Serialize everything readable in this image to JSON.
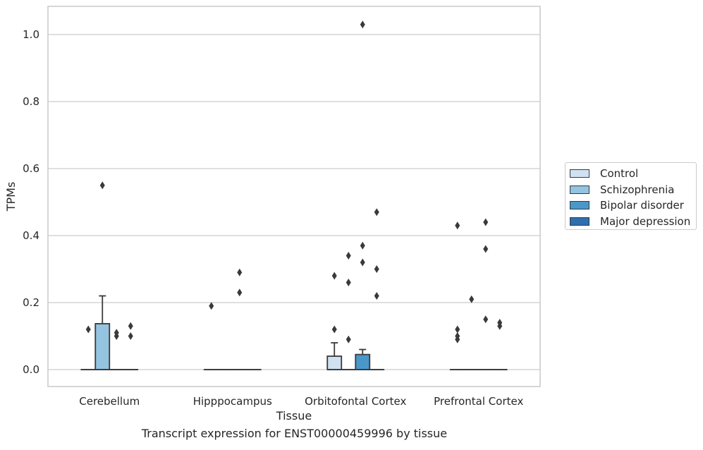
{
  "chart_data": {
    "type": "box",
    "title": "Transcript expression for ENST00000459996 by tissue",
    "xlabel": "Tissue",
    "ylabel": "TPMs",
    "ylim": [
      -0.05,
      1.08
    ],
    "yticks": [
      "0.0",
      "0.2",
      "0.4",
      "0.6",
      "0.8",
      "1.0"
    ],
    "categories": [
      "Cerebellum",
      "Hipppocampus",
      "Orbitofontal Cortex",
      "Prefrontal Cortex"
    ],
    "grid": "horizontal",
    "legend_position": "right",
    "series": [
      {
        "name": "Control",
        "color": "#d0e1f2",
        "boxes": [
          {
            "q1": 0,
            "median": 0,
            "q3": 0,
            "whisker_low": 0,
            "whisker_high": 0,
            "outliers": [
              0.12
            ]
          },
          {
            "q1": 0,
            "median": 0,
            "q3": 0,
            "whisker_low": 0,
            "whisker_high": 0,
            "outliers": [
              0.19
            ]
          },
          {
            "q1": 0,
            "median": 0,
            "q3": 0.04,
            "whisker_low": 0,
            "whisker_high": 0.08,
            "outliers": [
              0.12,
              0.28
            ]
          },
          {
            "q1": 0,
            "median": 0,
            "q3": 0,
            "whisker_low": 0,
            "whisker_high": 0,
            "outliers": [
              0.09,
              0.1,
              0.12,
              0.43
            ]
          }
        ]
      },
      {
        "name": "Schizophrenia",
        "color": "#94c4df",
        "boxes": [
          {
            "q1": 0,
            "median": 0,
            "q3": 0.137,
            "whisker_low": 0,
            "whisker_high": 0.22,
            "outliers": [
              0.55
            ]
          },
          {
            "q1": 0,
            "median": 0,
            "q3": 0,
            "whisker_low": 0,
            "whisker_high": 0,
            "outliers": []
          },
          {
            "q1": 0,
            "median": 0,
            "q3": 0,
            "whisker_low": 0,
            "whisker_high": 0,
            "outliers": [
              0.09,
              0.26,
              0.34
            ]
          },
          {
            "q1": 0,
            "median": 0,
            "q3": 0,
            "whisker_low": 0,
            "whisker_high": 0,
            "outliers": [
              0.21
            ]
          }
        ]
      },
      {
        "name": "Bipolar disorder",
        "color": "#4a98c9",
        "boxes": [
          {
            "q1": 0,
            "median": 0,
            "q3": 0,
            "whisker_low": 0,
            "whisker_high": 0,
            "outliers": [
              0.1,
              0.11
            ]
          },
          {
            "q1": 0,
            "median": 0,
            "q3": 0,
            "whisker_low": 0,
            "whisker_high": 0,
            "outliers": [
              0.23,
              0.29
            ]
          },
          {
            "q1": 0,
            "median": 0,
            "q3": 0.045,
            "whisker_low": 0,
            "whisker_high": 0.06,
            "outliers": [
              0.32,
              0.37,
              1.03
            ]
          },
          {
            "q1": 0,
            "median": 0,
            "q3": 0,
            "whisker_low": 0,
            "whisker_high": 0,
            "outliers": [
              0.15,
              0.36,
              0.44
            ]
          }
        ]
      },
      {
        "name": "Major depression",
        "color": "#2e6fb0",
        "boxes": [
          {
            "q1": 0,
            "median": 0,
            "q3": 0,
            "whisker_low": 0,
            "whisker_high": 0,
            "outliers": [
              0.1,
              0.13
            ]
          },
          {
            "q1": 0,
            "median": 0,
            "q3": 0,
            "whisker_low": 0,
            "whisker_high": 0,
            "outliers": []
          },
          {
            "q1": 0,
            "median": 0,
            "q3": 0,
            "whisker_low": 0,
            "whisker_high": 0,
            "outliers": [
              0.22,
              0.3,
              0.47
            ]
          },
          {
            "q1": 0,
            "median": 0,
            "q3": 0,
            "whisker_low": 0,
            "whisker_high": 0,
            "outliers": [
              0.13,
              0.14
            ]
          }
        ]
      }
    ]
  }
}
